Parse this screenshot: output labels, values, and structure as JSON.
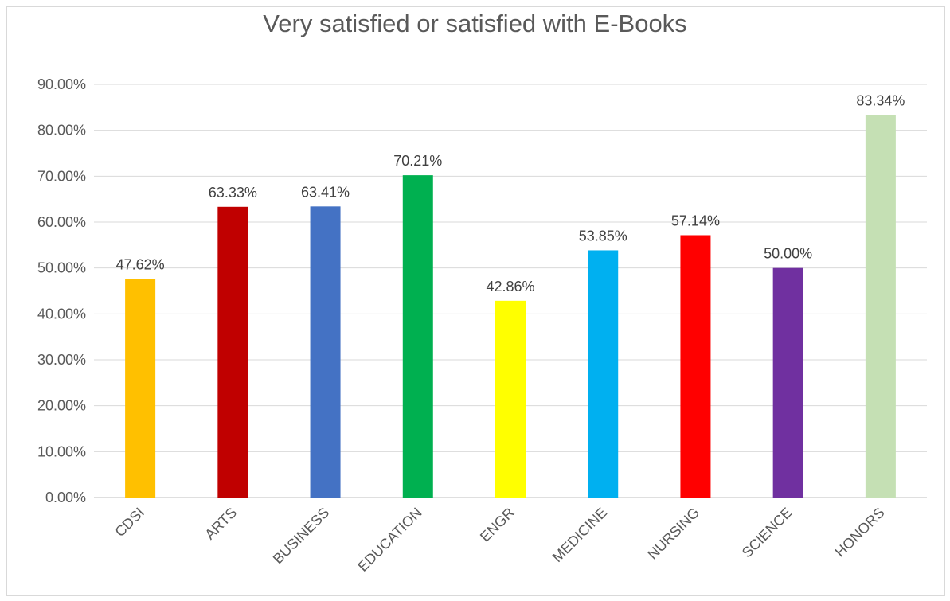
{
  "chart_data": {
    "type": "bar",
    "title": "Very satisfied or satisfied with E-Books",
    "xlabel": "",
    "ylabel": "",
    "ylim": [
      0,
      0.9
    ],
    "yticks": [
      "0.00%",
      "10.00%",
      "20.00%",
      "30.00%",
      "40.00%",
      "50.00%",
      "60.00%",
      "70.00%",
      "80.00%",
      "90.00%"
    ],
    "categories": [
      "CDSI",
      "ARTS",
      "BUSINESS",
      "EDUCATION",
      "ENGR",
      "MEDICINE",
      "NURSING",
      "SCIENCE",
      "HONORS"
    ],
    "values": [
      0.4762,
      0.6333,
      0.6341,
      0.7021,
      0.4286,
      0.5385,
      0.5714,
      0.5,
      0.8334
    ],
    "data_labels": [
      "47.62%",
      "63.33%",
      "63.41%",
      "70.21%",
      "42.86%",
      "53.85%",
      "57.14%",
      "50.00%",
      "83.34%"
    ],
    "colors": [
      "#ffc000",
      "#c00000",
      "#4472c4",
      "#00b050",
      "#ffff00",
      "#00b0f0",
      "#ff0000",
      "#7030a0",
      "#c5e0b4"
    ],
    "grid": true,
    "legend": "none"
  }
}
